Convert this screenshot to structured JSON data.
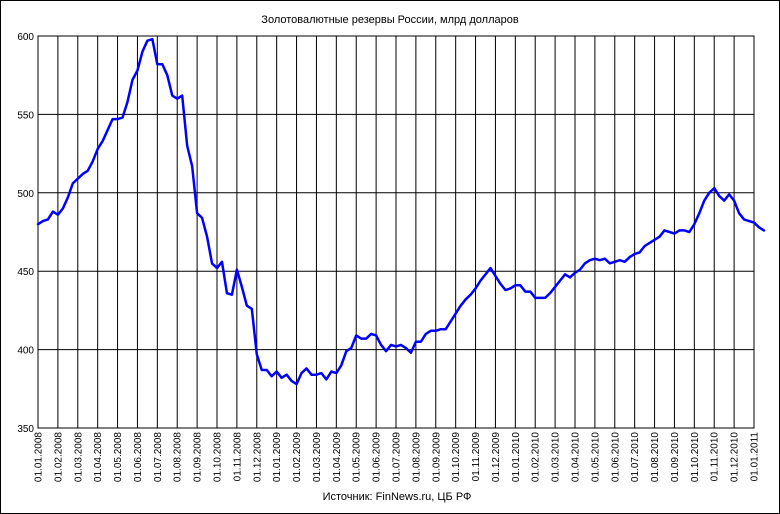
{
  "chart_data": {
    "type": "line",
    "title": "Золотовалютные резервы России, млрд долларов",
    "source": "Источник: FinNews.ru, ЦБ РФ",
    "xlabel": "",
    "ylabel": "",
    "ylim": [
      350,
      600
    ],
    "yticks": [
      350,
      400,
      450,
      500,
      550,
      600
    ],
    "grid": true,
    "legend": "none",
    "x_tick_labels": [
      "01.01.2008",
      "01.02.2008",
      "01.03.2008",
      "01.04.2008",
      "01.05.2008",
      "01.06.2008",
      "01.07.2008",
      "01.08.2008",
      "01.09.2008",
      "01.10.2008",
      "01.11.2008",
      "01.12.2008",
      "01.01.2009",
      "01.02.2009",
      "01.03.2009",
      "01.04.2009",
      "01.05.2009",
      "01.06.2009",
      "01.07.2009",
      "01.08.2009",
      "01.09.2009",
      "01.10.2009",
      "01.11.2009",
      "01.12.2009",
      "01.01.2010",
      "01.02.2010",
      "01.03.2010",
      "01.04.2010",
      "01.05.2010",
      "01.06.2010",
      "01.07.2010",
      "01.08.2010",
      "01.09.2010",
      "01.10.2010",
      "01.11.2010",
      "01.12.2010",
      "01.01.2011"
    ],
    "series": [
      {
        "color": "#0000ff",
        "points": [
          [
            0.0,
            480
          ],
          [
            0.25,
            482
          ],
          [
            0.5,
            483
          ],
          [
            0.75,
            488
          ],
          [
            1.0,
            486
          ],
          [
            1.25,
            490
          ],
          [
            1.5,
            497
          ],
          [
            1.75,
            506
          ],
          [
            2.0,
            509
          ],
          [
            2.25,
            512
          ],
          [
            2.5,
            514
          ],
          [
            2.75,
            520
          ],
          [
            3.0,
            528
          ],
          [
            3.25,
            533
          ],
          [
            3.5,
            540
          ],
          [
            3.75,
            547
          ],
          [
            4.0,
            547
          ],
          [
            4.25,
            548
          ],
          [
            4.5,
            558
          ],
          [
            4.75,
            572
          ],
          [
            5.0,
            578
          ],
          [
            5.25,
            590
          ],
          [
            5.5,
            597
          ],
          [
            5.75,
            598
          ],
          [
            6.0,
            582
          ],
          [
            6.25,
            582
          ],
          [
            6.5,
            575
          ],
          [
            6.75,
            562
          ],
          [
            7.0,
            560
          ],
          [
            7.25,
            562
          ],
          [
            7.5,
            530
          ],
          [
            7.75,
            517
          ],
          [
            8.0,
            487
          ],
          [
            8.25,
            484
          ],
          [
            8.5,
            472
          ],
          [
            8.75,
            455
          ],
          [
            9.0,
            452
          ],
          [
            9.25,
            456
          ],
          [
            9.5,
            436
          ],
          [
            9.75,
            435
          ],
          [
            10.0,
            451
          ],
          [
            10.25,
            440
          ],
          [
            10.5,
            428
          ],
          [
            10.75,
            426
          ],
          [
            11.0,
            397
          ],
          [
            11.25,
            387
          ],
          [
            11.5,
            387
          ],
          [
            11.75,
            383
          ],
          [
            12.0,
            386
          ],
          [
            12.25,
            382
          ],
          [
            12.5,
            384
          ],
          [
            12.75,
            380
          ],
          [
            13.0,
            378
          ],
          [
            13.25,
            385
          ],
          [
            13.5,
            388
          ],
          [
            13.75,
            384
          ],
          [
            14.0,
            384
          ],
          [
            14.25,
            385
          ],
          [
            14.5,
            381
          ],
          [
            14.75,
            386
          ],
          [
            15.0,
            385
          ],
          [
            15.25,
            390
          ],
          [
            15.5,
            399
          ],
          [
            15.75,
            401
          ],
          [
            16.0,
            409
          ],
          [
            16.25,
            407
          ],
          [
            16.5,
            407
          ],
          [
            16.75,
            410
          ],
          [
            17.0,
            409
          ],
          [
            17.25,
            403
          ],
          [
            17.5,
            399
          ],
          [
            17.75,
            403
          ],
          [
            18.0,
            402
          ],
          [
            18.25,
            403
          ],
          [
            18.5,
            401
          ],
          [
            18.75,
            398
          ],
          [
            19.0,
            405
          ],
          [
            19.25,
            405
          ],
          [
            19.5,
            410
          ],
          [
            19.75,
            412
          ],
          [
            20.0,
            412
          ],
          [
            20.25,
            413
          ],
          [
            20.5,
            413
          ],
          [
            20.75,
            418
          ],
          [
            21.0,
            423
          ],
          [
            21.25,
            428
          ],
          [
            21.5,
            432
          ],
          [
            21.75,
            435
          ],
          [
            22.0,
            439
          ],
          [
            22.25,
            444
          ],
          [
            22.5,
            448
          ],
          [
            22.75,
            452
          ],
          [
            23.0,
            447
          ],
          [
            23.25,
            442
          ],
          [
            23.5,
            438
          ],
          [
            23.75,
            439
          ],
          [
            24.0,
            441
          ],
          [
            24.25,
            441
          ],
          [
            24.5,
            437
          ],
          [
            24.75,
            437
          ],
          [
            25.0,
            433
          ],
          [
            25.25,
            433
          ],
          [
            25.5,
            433
          ],
          [
            25.75,
            436
          ],
          [
            26.0,
            440
          ],
          [
            26.25,
            444
          ],
          [
            26.5,
            448
          ],
          [
            26.75,
            446
          ],
          [
            27.0,
            449
          ],
          [
            27.25,
            451
          ],
          [
            27.5,
            455
          ],
          [
            27.75,
            457
          ],
          [
            28.0,
            458
          ],
          [
            28.25,
            457
          ],
          [
            28.5,
            458
          ],
          [
            28.75,
            455
          ],
          [
            29.0,
            456
          ],
          [
            29.25,
            457
          ],
          [
            29.5,
            456
          ],
          [
            29.75,
            459
          ],
          [
            30.0,
            461
          ],
          [
            30.25,
            462
          ],
          [
            30.5,
            466
          ],
          [
            30.75,
            468
          ],
          [
            31.0,
            470
          ],
          [
            31.25,
            472
          ],
          [
            31.5,
            476
          ],
          [
            31.75,
            475
          ],
          [
            32.0,
            474
          ],
          [
            32.25,
            476
          ],
          [
            32.5,
            476
          ],
          [
            32.75,
            475
          ],
          [
            33.0,
            480
          ],
          [
            33.25,
            487
          ],
          [
            33.5,
            495
          ],
          [
            33.75,
            500
          ],
          [
            34.0,
            503
          ],
          [
            34.25,
            498
          ],
          [
            34.5,
            495
          ],
          [
            34.75,
            499
          ],
          [
            35.0,
            495
          ],
          [
            35.25,
            487
          ],
          [
            35.5,
            483
          ],
          [
            35.75,
            482
          ],
          [
            36.0,
            481
          ],
          [
            36.25,
            478
          ],
          [
            36.5,
            476
          ]
        ]
      }
    ]
  }
}
